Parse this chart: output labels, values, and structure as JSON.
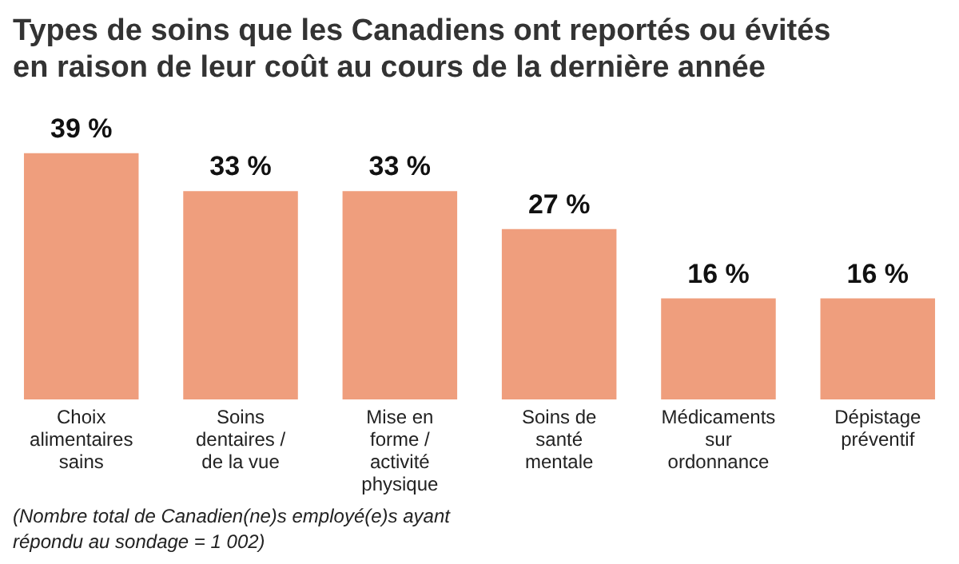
{
  "chart_data": {
    "type": "bar",
    "title": "Types de soins que les Canadiens ont reportés ou évités en raison de leur coût au cours de la dernière année",
    "categories": [
      "Choix alimentaires sains",
      "Soins dentaires / de la vue",
      "Mise en forme / activité physique",
      "Soins de santé mentale",
      "Médicaments sur ordonnance",
      "Dépistage préventif"
    ],
    "values": [
      39,
      33,
      33,
      27,
      16,
      16
    ],
    "value_labels": [
      "39 %",
      "33 %",
      "33 %",
      "27 %",
      "16 %",
      "16 %"
    ],
    "color": "#ef9e7d",
    "annotations": [
      "(Nombre total de Canadien(ne)s employé(e)s ayant répondu au sondage = 1 002)"
    ]
  }
}
